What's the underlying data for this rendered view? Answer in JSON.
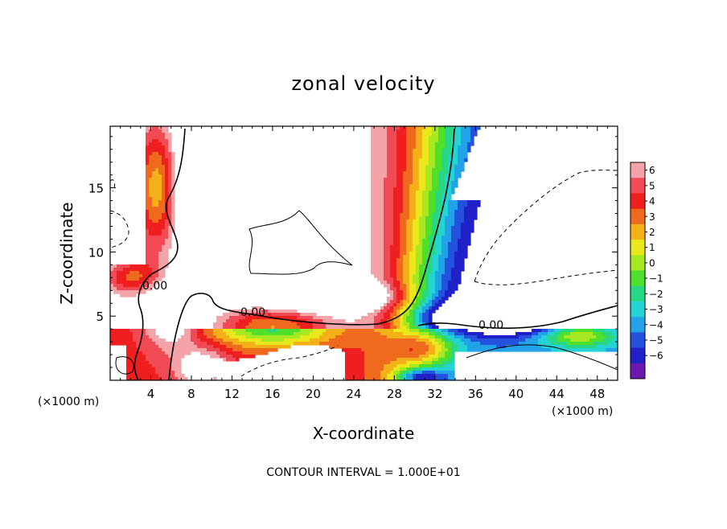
{
  "chart_data": {
    "type": "heatmap",
    "title": "zonal velocity",
    "xlabel": "X-coordinate",
    "ylabel": "Z-coordinate",
    "x_unit_left": "(×1000 m)",
    "x_unit_right": "(×1000 m)",
    "xlim": [
      0,
      50
    ],
    "ylim": [
      0,
      19.8
    ],
    "x_ticks": [
      4,
      8,
      12,
      16,
      20,
      24,
      28,
      32,
      36,
      40,
      44,
      48
    ],
    "y_ticks": [
      5,
      10,
      15
    ],
    "colorbar": {
      "levels": [
        -6,
        -5,
        -4,
        -3,
        -2,
        -1,
        0,
        1,
        2,
        3,
        4,
        5,
        6
      ],
      "labels": [
        "6",
        "5",
        "4",
        "3",
        "2",
        "1",
        "0",
        "−1",
        "−2",
        "−3",
        "−4",
        "−5",
        "−6"
      ],
      "colors": [
        "#f4a3a9",
        "#f14a55",
        "#ef1f1f",
        "#f06a1e",
        "#f3b117",
        "#e8e81a",
        "#a6e822",
        "#4ee02a",
        "#27d784",
        "#24d3d3",
        "#22a2e8",
        "#2451dd",
        "#2020c8",
        "#6a18b0"
      ]
    },
    "contour_interval_text": "CONTOUR INTERVAL = 1.000E+01",
    "contour_labels": [
      "0.00",
      "0.00",
      "0.00"
    ]
  }
}
